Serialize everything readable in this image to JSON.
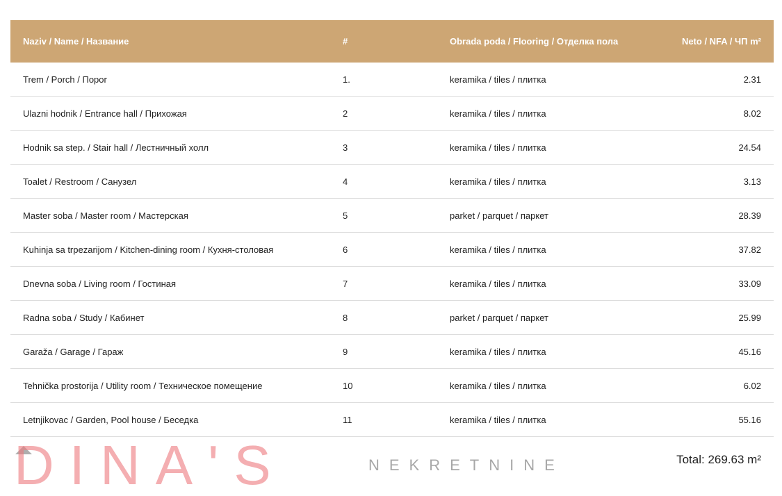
{
  "headers": [
    "Naziv / Name / Название",
    "#",
    "Obrada poda / Flooring / Отделка пола",
    "Neto / NFA /  ЧП m²"
  ],
  "rows": [
    [
      "Trem / Porch / Порог",
      "1.",
      "keramika / tiles / плитка",
      "2.31"
    ],
    [
      "Ulazni hodnik / Entrance hall / Прихожая",
      "2",
      "keramika / tiles / плитка",
      "8.02"
    ],
    [
      "Hodnik sa step. / Stair hall / Лестничный холл",
      "3",
      "keramika / tiles / плитка",
      "24.54"
    ],
    [
      "Toalet / Restroom / Санузел",
      "4",
      "keramika / tiles / плитка",
      "3.13"
    ],
    [
      "Master soba / Master room / Мастерская",
      "5",
      "parket / parquet / паркет",
      "28.39"
    ],
    [
      "Kuhinja sa trpezarijom / Kitchen-dining room / Кухня-столовая",
      "6",
      "keramika / tiles / плитка",
      "37.82"
    ],
    [
      "Dnevna soba / Living room / Гостиная",
      "7",
      "keramika / tiles / плитка",
      "33.09"
    ],
    [
      "Radna soba / Study / Кабинет",
      "8",
      "parket / parquet / паркет",
      "25.99"
    ],
    [
      "Garaža / Garage / Гараж",
      "9",
      "keramika / tiles / плитка",
      "45.16"
    ],
    [
      "Tehnička prostorija / Utility room / Техническое помещение",
      "10",
      "keramika / tiles / плитка",
      "6.02"
    ],
    [
      "Letnjikovac / Garden, Pool house / Беседка",
      "11",
      "keramika / tiles / плитка",
      "55.16"
    ]
  ],
  "total": "Total: 269.63 m²",
  "watermark": {
    "logo": "DINA'S",
    "sub": "NEKRETNINE"
  },
  "colors": {
    "header_bg": "#cda674"
  }
}
